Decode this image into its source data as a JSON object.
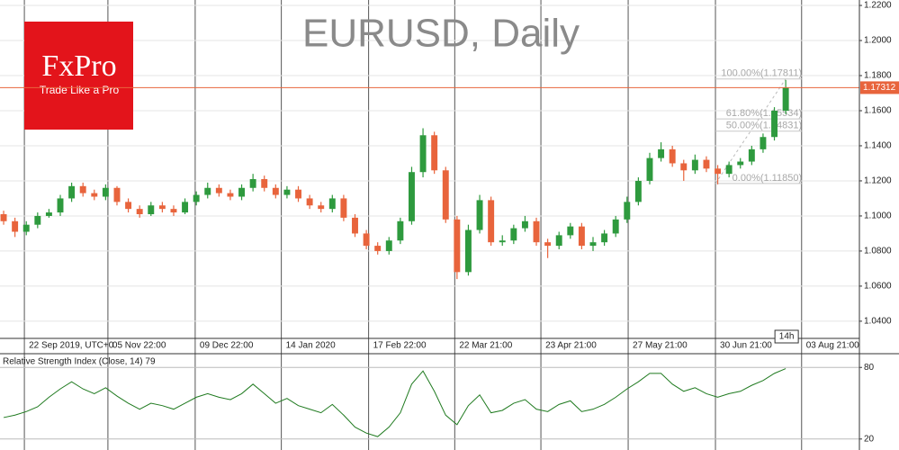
{
  "logo": {
    "name": "FxPro",
    "tagline": "Trade Like a Pro"
  },
  "chart_data": [
    {
      "type": "candlestick",
      "title": "EURUSD, Daily",
      "open": [
        1.101,
        1.097,
        1.091,
        1.095,
        1.1,
        1.102,
        1.11,
        1.117,
        1.113,
        1.111,
        1.116,
        1.108,
        1.104,
        1.101,
        1.106,
        1.104,
        1.102,
        1.108,
        1.112,
        1.116,
        1.113,
        1.111,
        1.116,
        1.121,
        1.116,
        1.112,
        1.115,
        1.11,
        1.106,
        1.104,
        1.11,
        1.099,
        1.09,
        1.083,
        1.08,
        1.086,
        1.097,
        1.125,
        1.146,
        1.126,
        1.098,
        1.068,
        1.092,
        1.109,
        1.085,
        1.086,
        1.093,
        1.097,
        1.085,
        1.083,
        1.089,
        1.094,
        1.083,
        1.085,
        1.09,
        1.098,
        1.108,
        1.12,
        1.133,
        1.138,
        1.13,
        1.126,
        1.132,
        1.127,
        1.124,
        1.129,
        1.131,
        1.138,
        1.145,
        1.16
      ],
      "high": [
        1.103,
        1.099,
        1.097,
        1.102,
        1.104,
        1.112,
        1.119,
        1.119,
        1.115,
        1.118,
        1.117,
        1.11,
        1.106,
        1.108,
        1.108,
        1.106,
        1.11,
        1.114,
        1.119,
        1.118,
        1.115,
        1.118,
        1.124,
        1.123,
        1.118,
        1.117,
        1.117,
        1.112,
        1.108,
        1.112,
        1.112,
        1.101,
        1.092,
        1.085,
        1.088,
        1.099,
        1.128,
        1.15,
        1.148,
        1.128,
        1.1,
        1.095,
        1.112,
        1.111,
        1.089,
        1.095,
        1.1,
        1.099,
        1.087,
        1.091,
        1.096,
        1.096,
        1.088,
        1.092,
        1.1,
        1.111,
        1.122,
        1.136,
        1.142,
        1.14,
        1.132,
        1.135,
        1.134,
        1.129,
        1.131,
        1.133,
        1.14,
        1.147,
        1.162,
        1.1775
      ],
      "low": [
        1.095,
        1.088,
        1.089,
        1.093,
        1.099,
        1.1,
        1.108,
        1.111,
        1.109,
        1.109,
        1.106,
        1.102,
        1.099,
        1.1,
        1.102,
        1.1,
        1.101,
        1.106,
        1.11,
        1.111,
        1.109,
        1.109,
        1.114,
        1.114,
        1.11,
        1.11,
        1.108,
        1.104,
        1.102,
        1.102,
        1.097,
        1.088,
        1.081,
        1.078,
        1.078,
        1.084,
        1.095,
        1.122,
        1.124,
        1.096,
        1.064,
        1.066,
        1.09,
        1.083,
        1.083,
        1.084,
        1.091,
        1.083,
        1.076,
        1.081,
        1.087,
        1.081,
        1.08,
        1.083,
        1.088,
        1.096,
        1.106,
        1.118,
        1.131,
        1.128,
        1.12,
        1.124,
        1.125,
        1.118,
        1.122,
        1.127,
        1.129,
        1.136,
        1.143,
        1.158
      ],
      "close": [
        1.097,
        1.091,
        1.095,
        1.1,
        1.102,
        1.11,
        1.117,
        1.113,
        1.111,
        1.116,
        1.108,
        1.104,
        1.101,
        1.106,
        1.104,
        1.102,
        1.108,
        1.112,
        1.116,
        1.113,
        1.111,
        1.116,
        1.121,
        1.116,
        1.112,
        1.115,
        1.11,
        1.106,
        1.104,
        1.11,
        1.099,
        1.09,
        1.083,
        1.08,
        1.086,
        1.097,
        1.125,
        1.146,
        1.126,
        1.098,
        1.068,
        1.092,
        1.109,
        1.085,
        1.086,
        1.093,
        1.097,
        1.085,
        1.083,
        1.089,
        1.094,
        1.083,
        1.085,
        1.09,
        1.098,
        1.108,
        1.12,
        1.133,
        1.138,
        1.13,
        1.126,
        1.132,
        1.127,
        1.124,
        1.129,
        1.131,
        1.138,
        1.145,
        1.16,
        1.1731
      ],
      "up_color": "#2e9a3e",
      "down_color": "#e8643c",
      "xlim": [
        -0.32,
        75.5
      ],
      "xticks": [
        {
          "value": 1.83,
          "label": "22 Sep 2019, UTC+0"
        },
        {
          "value": 9.2,
          "label": "05 Nov 22:00"
        },
        {
          "value": 16.9,
          "label": "09 Dec 22:00"
        },
        {
          "value": 24.5,
          "label": "14 Jan 2020"
        },
        {
          "value": 32.2,
          "label": "17 Feb 22:00"
        },
        {
          "value": 39.8,
          "label": "22 Mar 21:00"
        },
        {
          "value": 47.4,
          "label": "23 Apr 21:00"
        },
        {
          "value": 55.1,
          "label": "27 May 21:00"
        },
        {
          "value": 62.8,
          "label": "30 Jun 21:00"
        },
        {
          "value": 70.4,
          "label": "03 Aug 21:00"
        }
      ],
      "ylim": [
        1.0302,
        1.2231
      ],
      "yticks": [
        {
          "value": 1.04,
          "label": "1.0400"
        },
        {
          "value": 1.06,
          "label": "1.0600"
        },
        {
          "value": 1.08,
          "label": "1.0800"
        },
        {
          "value": 1.1,
          "label": "1.1000"
        },
        {
          "value": 1.12,
          "label": "1.1200"
        },
        {
          "value": 1.14,
          "label": "1.1400"
        },
        {
          "value": 1.16,
          "label": "1.1600"
        },
        {
          "value": 1.18,
          "label": "1.1800"
        },
        {
          "value": 1.2,
          "label": "1.2000"
        },
        {
          "value": 1.22,
          "label": "1.2200"
        }
      ],
      "last_price": {
        "value": 1.17312,
        "label": "1.17312"
      },
      "time_marker": "14h",
      "fibonacci": [
        {
          "value": 1.17811,
          "label": "100.00%(1.17811)"
        },
        {
          "value": 1.15534,
          "label": "61.80%(1.15534)"
        },
        {
          "value": 1.14831,
          "label": "50.00%(1.14831)"
        },
        {
          "value": 1.1185,
          "label": "0.00%(1.11850)"
        }
      ],
      "grid": true
    },
    {
      "type": "line",
      "title": "Relative Strength Index (Close, 14) 79",
      "color": "#1f7a1f",
      "values": [
        38,
        40,
        43,
        47,
        55,
        62,
        68,
        62,
        58,
        63,
        56,
        50,
        45,
        50,
        48,
        45,
        50,
        55,
        58,
        55,
        53,
        58,
        66,
        58,
        50,
        54,
        48,
        45,
        42,
        49,
        40,
        30,
        25,
        22,
        30,
        42,
        66,
        77,
        60,
        40,
        32,
        48,
        57,
        42,
        44,
        50,
        53,
        45,
        43,
        49,
        52,
        43,
        45,
        49,
        55,
        62,
        68,
        75,
        75,
        66,
        60,
        63,
        58,
        55,
        58,
        60,
        65,
        69,
        75,
        79
      ],
      "ylim": [
        10.8,
        91.5
      ],
      "yticks": [
        80,
        20
      ]
    }
  ]
}
